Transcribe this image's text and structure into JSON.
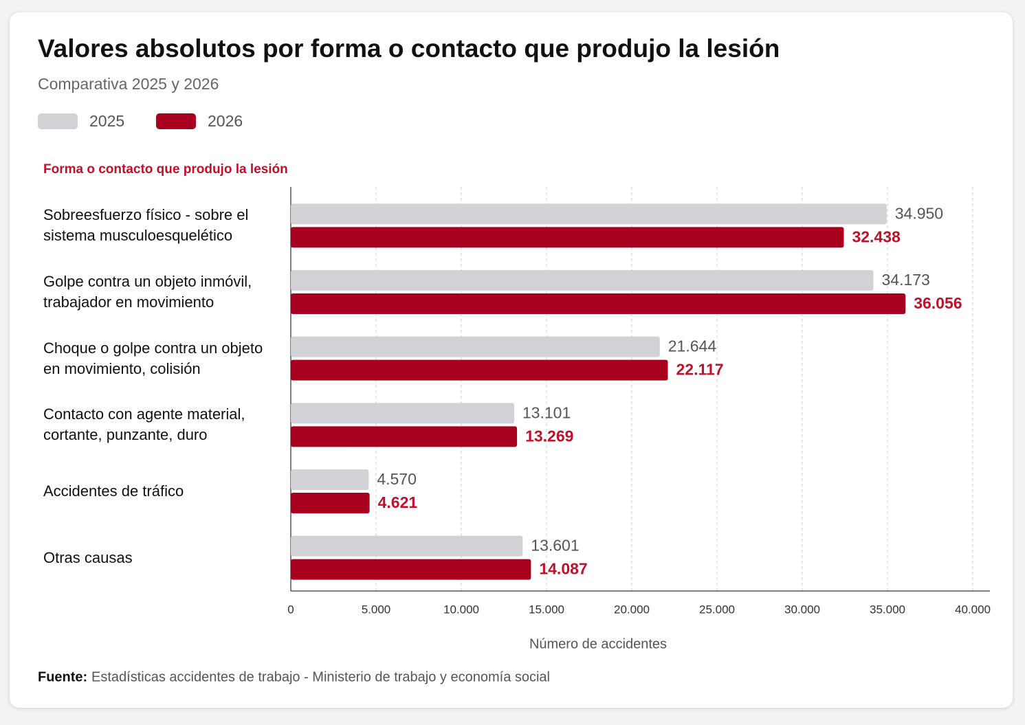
{
  "chart_data": {
    "type": "bar",
    "orientation": "horizontal",
    "title": "Valores absolutos por forma o contacto que produjo la lesión",
    "subtitle": "Comparativa 2025 y 2026",
    "y_axis_title": "Forma o contacto que produjo la lesión",
    "x_axis_title": "Número de accidentes",
    "source_label": "Fuente:",
    "source_text": "Estadísticas accidentes de trabajo - Ministerio de trabajo y economía social",
    "categories": [
      "Sobreesfuerzo físico - sobre el sistema musculoesquelético",
      "Golpe contra un objeto inmóvil, trabajador en movimiento",
      "Choque o golpe contra un objeto en movimiento, colisión",
      "Contacto con agente material, cortante, punzante, duro",
      "Accidentes de tráfico",
      "Otras causas"
    ],
    "series": [
      {
        "name": "2025",
        "color": "#d1d1d6",
        "label_color": "#555555",
        "values": [
          34950,
          34173,
          21644,
          13101,
          4570,
          13601
        ],
        "value_labels": [
          "34.950",
          "34.173",
          "21.644",
          "13.101",
          "4.570",
          "13.601"
        ]
      },
      {
        "name": "2026",
        "color": "#a8001f",
        "label_color": "#c0102a",
        "values": [
          32438,
          36056,
          22117,
          13269,
          4621,
          14087
        ],
        "value_labels": [
          "32.438",
          "36.056",
          "22.117",
          "13.269",
          "4.621",
          "14.087"
        ]
      }
    ],
    "xlim": [
      0,
      40000
    ],
    "xticks": [
      0,
      {
        "value": 5000,
        "label": "5.000"
      },
      {
        "value": 10000,
        "label": "10.000"
      },
      {
        "value": 15000,
        "label": "15.000"
      },
      {
        "value": 20000,
        "label": "20.000"
      },
      {
        "value": 25000,
        "label": "25.000"
      },
      {
        "value": 30000,
        "label": "30.000"
      },
      {
        "value": 35000,
        "label": "35.000"
      },
      {
        "value": 40000,
        "label": "40.000"
      }
    ],
    "grid": true
  }
}
